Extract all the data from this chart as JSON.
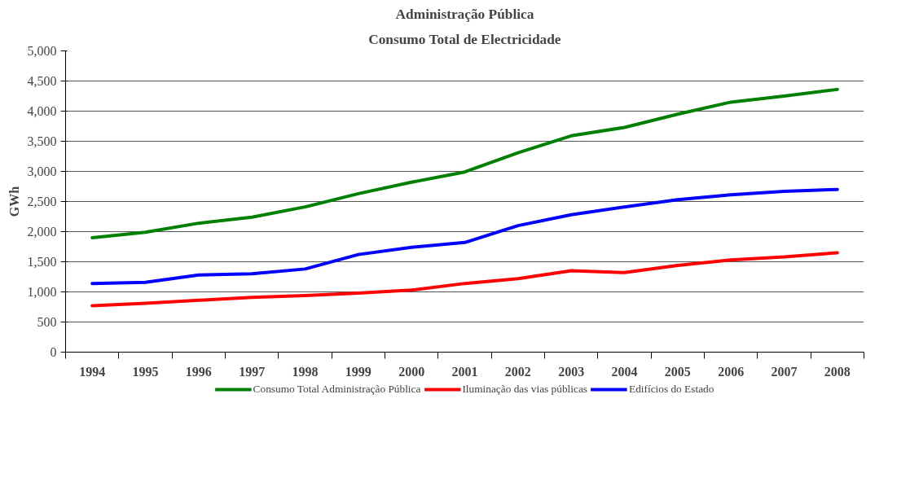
{
  "chart_data": {
    "type": "line",
    "title": "Administração Pública",
    "subtitle": "Consumo Total de Electricidade",
    "ylabel": "GWh",
    "categories": [
      "1994",
      "1995",
      "1996",
      "1997",
      "1998",
      "1999",
      "2000",
      "2001",
      "2002",
      "2003",
      "2004",
      "2005",
      "2006",
      "2007",
      "2008"
    ],
    "series": [
      {
        "name": "Consumo Total Administração Pública",
        "color": "#008000",
        "values": [
          1900,
          1990,
          2140,
          2240,
          2410,
          2630,
          2820,
          2990,
          3310,
          3590,
          3730,
          3950,
          4150,
          4250,
          4360
        ]
      },
      {
        "name": "Iluminação das vias públicas",
        "color": "#ff0000",
        "values": [
          770,
          810,
          860,
          910,
          940,
          980,
          1030,
          1140,
          1220,
          1350,
          1320,
          1440,
          1530,
          1580,
          1650
        ]
      },
      {
        "name": "Edifícios do Estado",
        "color": "#0000ff",
        "values": [
          1140,
          1160,
          1280,
          1300,
          1380,
          1620,
          1740,
          1820,
          2100,
          2280,
          2410,
          2530,
          2610,
          2670,
          2700
        ]
      }
    ],
    "ylim": [
      0,
      5000
    ],
    "yticks": [
      0,
      500,
      {
        "value": 1000,
        "label": "1,000"
      },
      {
        "value": 1500,
        "label": "1,500"
      },
      {
        "value": 2000,
        "label": "2,000"
      },
      {
        "value": 2500,
        "label": "2,500"
      },
      {
        "value": 3000,
        "label": "3,000"
      },
      {
        "value": 3500,
        "label": "3,500"
      },
      {
        "value": 4000,
        "label": "4,000"
      },
      {
        "value": 4500,
        "label": "4,500"
      },
      {
        "value": 5000,
        "label": "5,000"
      }
    ],
    "grid": "y",
    "legend": "bottom",
    "marker": "none",
    "line_style": "solid"
  }
}
